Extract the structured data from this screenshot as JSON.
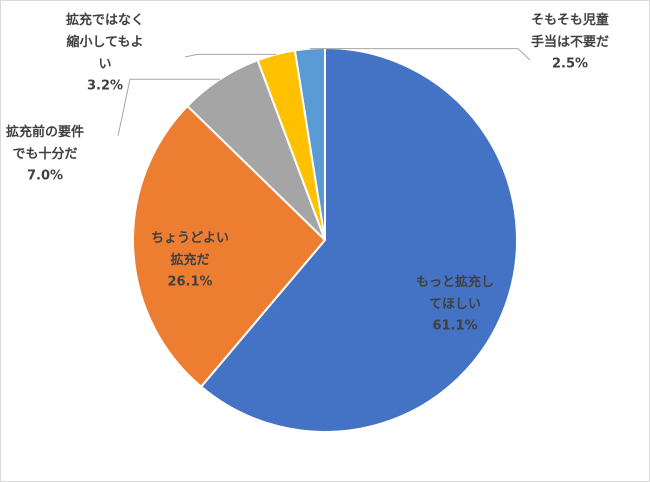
{
  "chart_data": {
    "type": "pie",
    "categories": [
      "もっと拡充してほしい",
      "ちょうどよい拡充だ",
      "拡充前の要件でも十分だ",
      "拡充ではなく縮小してもよい",
      "そもそも児童手当は不要だ"
    ],
    "values": [
      61.1,
      26.1,
      7.0,
      3.2,
      2.5
    ],
    "value_labels": [
      "61.1%",
      "26.1%",
      "7.0%",
      "3.2%",
      "2.5%"
    ],
    "colors": [
      "#4472c4",
      "#ed7d31",
      "#a5a5a5",
      "#ffc000",
      "#5b9bd5"
    ]
  }
}
